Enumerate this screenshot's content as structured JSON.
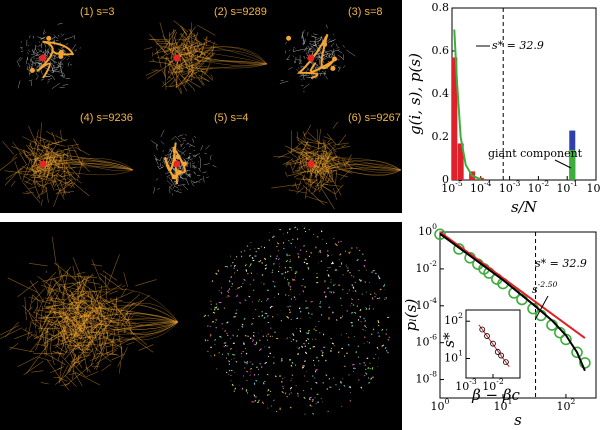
{
  "network_panels": [
    "(1) s=3",
    "(2) s=9289",
    "(3) s=8",
    "(4) s=9236",
    "(5) s=4",
    "(6) s=9267"
  ],
  "chart_data": [
    {
      "type": "bar",
      "xlabel": "s/N",
      "ylabel": "g(i, s), p(s)",
      "xlog": true,
      "xlim": [
        1e-05,
        1
      ],
      "ylim": [
        0,
        0.8
      ],
      "xticks": [
        {
          "value": 1e-05,
          "label": "10^-5"
        },
        {
          "value": 0.0001,
          "label": "10^-4"
        },
        {
          "value": 0.001,
          "label": "10^-3"
        },
        {
          "value": 0.01,
          "label": "10^-2"
        },
        {
          "value": 0.1,
          "label": "10^-1"
        },
        {
          "value": 1,
          "label": "10^0"
        }
      ],
      "yticks": [
        0,
        0.2,
        0.4,
        0.6,
        0.8
      ],
      "vline": 0.0006,
      "annotations": [
        "s* = 32.9",
        "giant component"
      ],
      "series": [
        {
          "type": "bar",
          "color": "#e0202a",
          "x": [
            1.2e-05,
            2e-05,
            5e-05,
            0.0001
          ],
          "values": [
            0.57,
            0.17,
            0.04,
            0.01
          ]
        },
        {
          "type": "bar",
          "color": "#2f3fb0",
          "x": [
            0.15
          ],
          "values": [
            0.23
          ]
        },
        {
          "type": "bar",
          "color": "#3cae3c",
          "x": [
            0.15
          ],
          "values": [
            0.14
          ]
        },
        {
          "type": "line",
          "color": "#3cae3c",
          "x": [
            1.2e-05,
            1.5e-05,
            2e-05,
            3e-05,
            5e-05,
            0.0001
          ],
          "values": [
            0.7,
            0.45,
            0.2,
            0.07,
            0.02,
            0.003
          ]
        }
      ]
    },
    {
      "type": "scatter",
      "xlabel": "s",
      "ylabel": "pₗ(s)",
      "xlog": true,
      "ylog": true,
      "xlim": [
        1,
        300
      ],
      "ylim": [
        1e-09,
        1
      ],
      "xticks": [
        {
          "value": 1,
          "label": "10^0"
        },
        {
          "value": 10,
          "label": "10^1"
        },
        {
          "value": 100,
          "label": "10^2"
        }
      ],
      "yticks": [
        {
          "value": 1e-08,
          "label": "10^-8"
        },
        {
          "value": 1e-06,
          "label": "10^-6"
        },
        {
          "value": 0.0001,
          "label": "10^-4"
        },
        {
          "value": 0.01,
          "label": "10^-2"
        },
        {
          "value": 1,
          "label": "10^0"
        }
      ],
      "vline": 32.9,
      "annotations": [
        "s* = 32.9",
        "s^-2.50"
      ],
      "series": [
        {
          "type": "scatter",
          "color": "#3cae3c",
          "x": [
            1,
            2,
            3,
            4,
            5,
            6,
            8,
            10,
            15,
            20,
            30,
            40,
            60,
            80,
            100,
            150,
            200
          ],
          "values": [
            0.75,
            0.12,
            0.04,
            0.018,
            0.01,
            0.006,
            0.0028,
            0.0016,
            0.0005,
            0.00022,
            7e-05,
            3e-05,
            9e-06,
            3.5e-06,
            1.5e-06,
            3e-07,
            8e-08
          ]
        },
        {
          "type": "line",
          "color": "#e0202a",
          "x": [
            1,
            200
          ],
          "values": [
            1,
            1.77e-06
          ]
        },
        {
          "type": "line",
          "color": "#000000",
          "x": [
            1,
            10,
            30,
            60,
            100,
            150,
            200
          ],
          "values": [
            0.8,
            0.0025,
            0.00012,
            1.6e-05,
            2.5e-06,
            3e-07,
            3e-08
          ]
        }
      ]
    },
    {
      "type": "scatter",
      "xlabel": "β − βc",
      "ylabel": "s*",
      "xlog": true,
      "ylog": true,
      "xlim": [
        0.001,
        0.1
      ],
      "ylim": [
        3,
        200
      ],
      "xticks": [
        {
          "value": 0.001,
          "label": "10^-3"
        },
        {
          "value": 0.01,
          "label": "10^-2"
        }
      ],
      "yticks": [
        {
          "value": 10,
          "label": "10^1"
        },
        {
          "value": 100,
          "label": "10^2"
        }
      ],
      "series": [
        {
          "type": "line",
          "color": "#e0202a",
          "x": [
            0.003,
            0.04
          ],
          "values": [
            80,
            6
          ]
        },
        {
          "type": "scatter",
          "color": "#000000",
          "x": [
            0.004,
            0.006,
            0.01,
            0.015,
            0.02,
            0.03
          ],
          "values": [
            60,
            40,
            25,
            15,
            12,
            8
          ]
        }
      ]
    }
  ]
}
